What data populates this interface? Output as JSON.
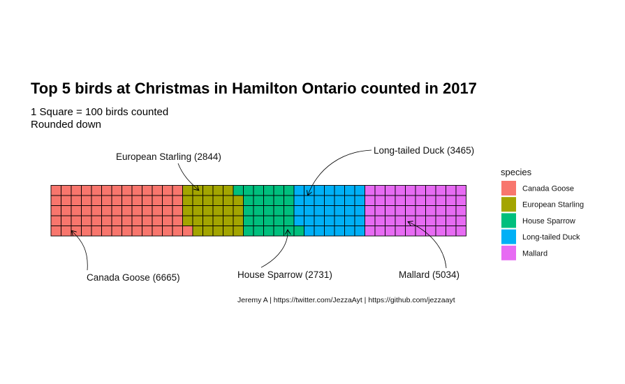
{
  "chart_data": {
    "type": "waffle",
    "title": "Top 5 birds at Christmas in Hamilton Ontario counted in 2017",
    "subtitle_line1": "1 Square = 100 birds counted",
    "subtitle_line2": "Rounded down",
    "caption": "Jeremy A | https://twitter.com/JezzaAyt | https://github.com/jezzaayt",
    "legend_title": "species",
    "squares_per_column": 5,
    "categories": [
      "Canada Goose",
      "European Starling",
      "House Sparrow",
      "Long-tailed Duck",
      "Mallard"
    ],
    "counts": [
      6665,
      2844,
      2731,
      3465,
      5034
    ],
    "squares": [
      66,
      28,
      27,
      34,
      50
    ],
    "colors": [
      "#F8766D",
      "#A3A500",
      "#00BF7D",
      "#00B0F6",
      "#E76BF3"
    ],
    "annotations": [
      {
        "label": "Canada Goose (6665)"
      },
      {
        "label": "European Starling (2844)"
      },
      {
        "label": "House Sparrow (2731)"
      },
      {
        "label": "Long-tailed Duck (3465)"
      },
      {
        "label": "Mallard (5034)"
      }
    ]
  }
}
